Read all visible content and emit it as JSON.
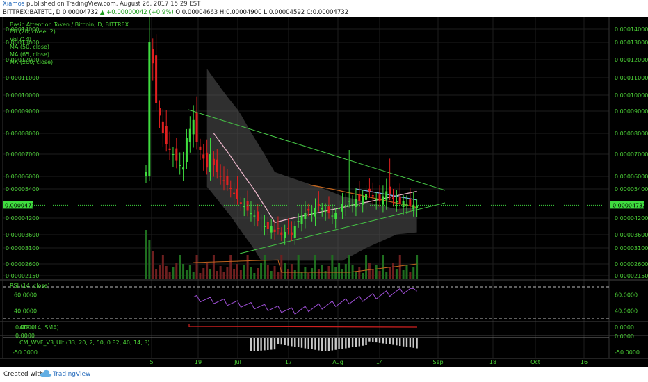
{
  "header": {
    "author": "Xiamos",
    "published": " published on TradingView.com, August 26, 2017 15:29 EST",
    "symbol": "BITTREX:BATBTC, D  0.00004732",
    "change": "▲ +0.00000042 (+0.9%)",
    "ohlc": " O:0.00004663 H:0.00004900 L:0.00004592 C:0.00004732"
  },
  "footer": {
    "created": "Created with",
    "brand": "TradingView"
  },
  "colors": {
    "background": "#000000",
    "grid": "#1e1e1e",
    "text": "#4cd137",
    "up": "#3fdc3f",
    "down": "#e02020",
    "band": "#555555",
    "ma50": "#e8b4c8",
    "ma65": "#c0641e",
    "ma200": "#7ab0e6",
    "trendline": "#46c846",
    "rsi": "#a050d8",
    "atr": "#d02020",
    "volma": "#c0641e",
    "wvf": "#c8c8c8",
    "price_tag_bg": "#3fdc3f"
  },
  "chart_data": {
    "type": "candlestick",
    "title": "Basic Attention Token / Bitcoin, D, BITTREX",
    "legend": [
      "BB (20, close, 2)",
      "Vol (14)",
      "MA (50, close)",
      "MA (65, close)",
      "MA (200, close)"
    ],
    "x_ticks": [
      "5",
      "19",
      "Jul",
      "17",
      "Aug",
      "14",
      "Sep",
      "18",
      "Oct",
      "16"
    ],
    "last_price": "0.00004732",
    "price_axis": {
      "labels": [
        "0.00014000",
        "0.00013000",
        "0.00012000",
        "0.00011000",
        "0.00010000",
        "0.00009000",
        "0.00008000",
        "0.00007000",
        "0.00006000",
        "0.00005400",
        "0.00004200",
        "0.00003600",
        "0.00003100",
        "0.00002600",
        "0.00002150"
      ],
      "values": [
        0.00014,
        0.00013,
        0.00012,
        0.00011,
        0.0001,
        9e-05,
        8e-05,
        7e-05,
        6e-05,
        5.4e-05,
        4.2e-05,
        3.6e-05,
        3.1e-05,
        2.6e-05,
        2.15e-05
      ]
    },
    "rsi": {
      "label": "RSI (14, close)",
      "ticks": [
        "60.0000",
        "40.0000"
      ],
      "tick_values": [
        60,
        40
      ],
      "bands": [
        70,
        30
      ]
    },
    "atr": {
      "label": "ATR (14, SMA)",
      "ticks": [
        "0.0000"
      ]
    },
    "wvf": {
      "label": "CM_WVF_V3_Ult (33, 20, 2, 50, 0.82, 40, 14, 3)",
      "ticks": [
        "0.0000",
        "-50.0000"
      ]
    }
  }
}
